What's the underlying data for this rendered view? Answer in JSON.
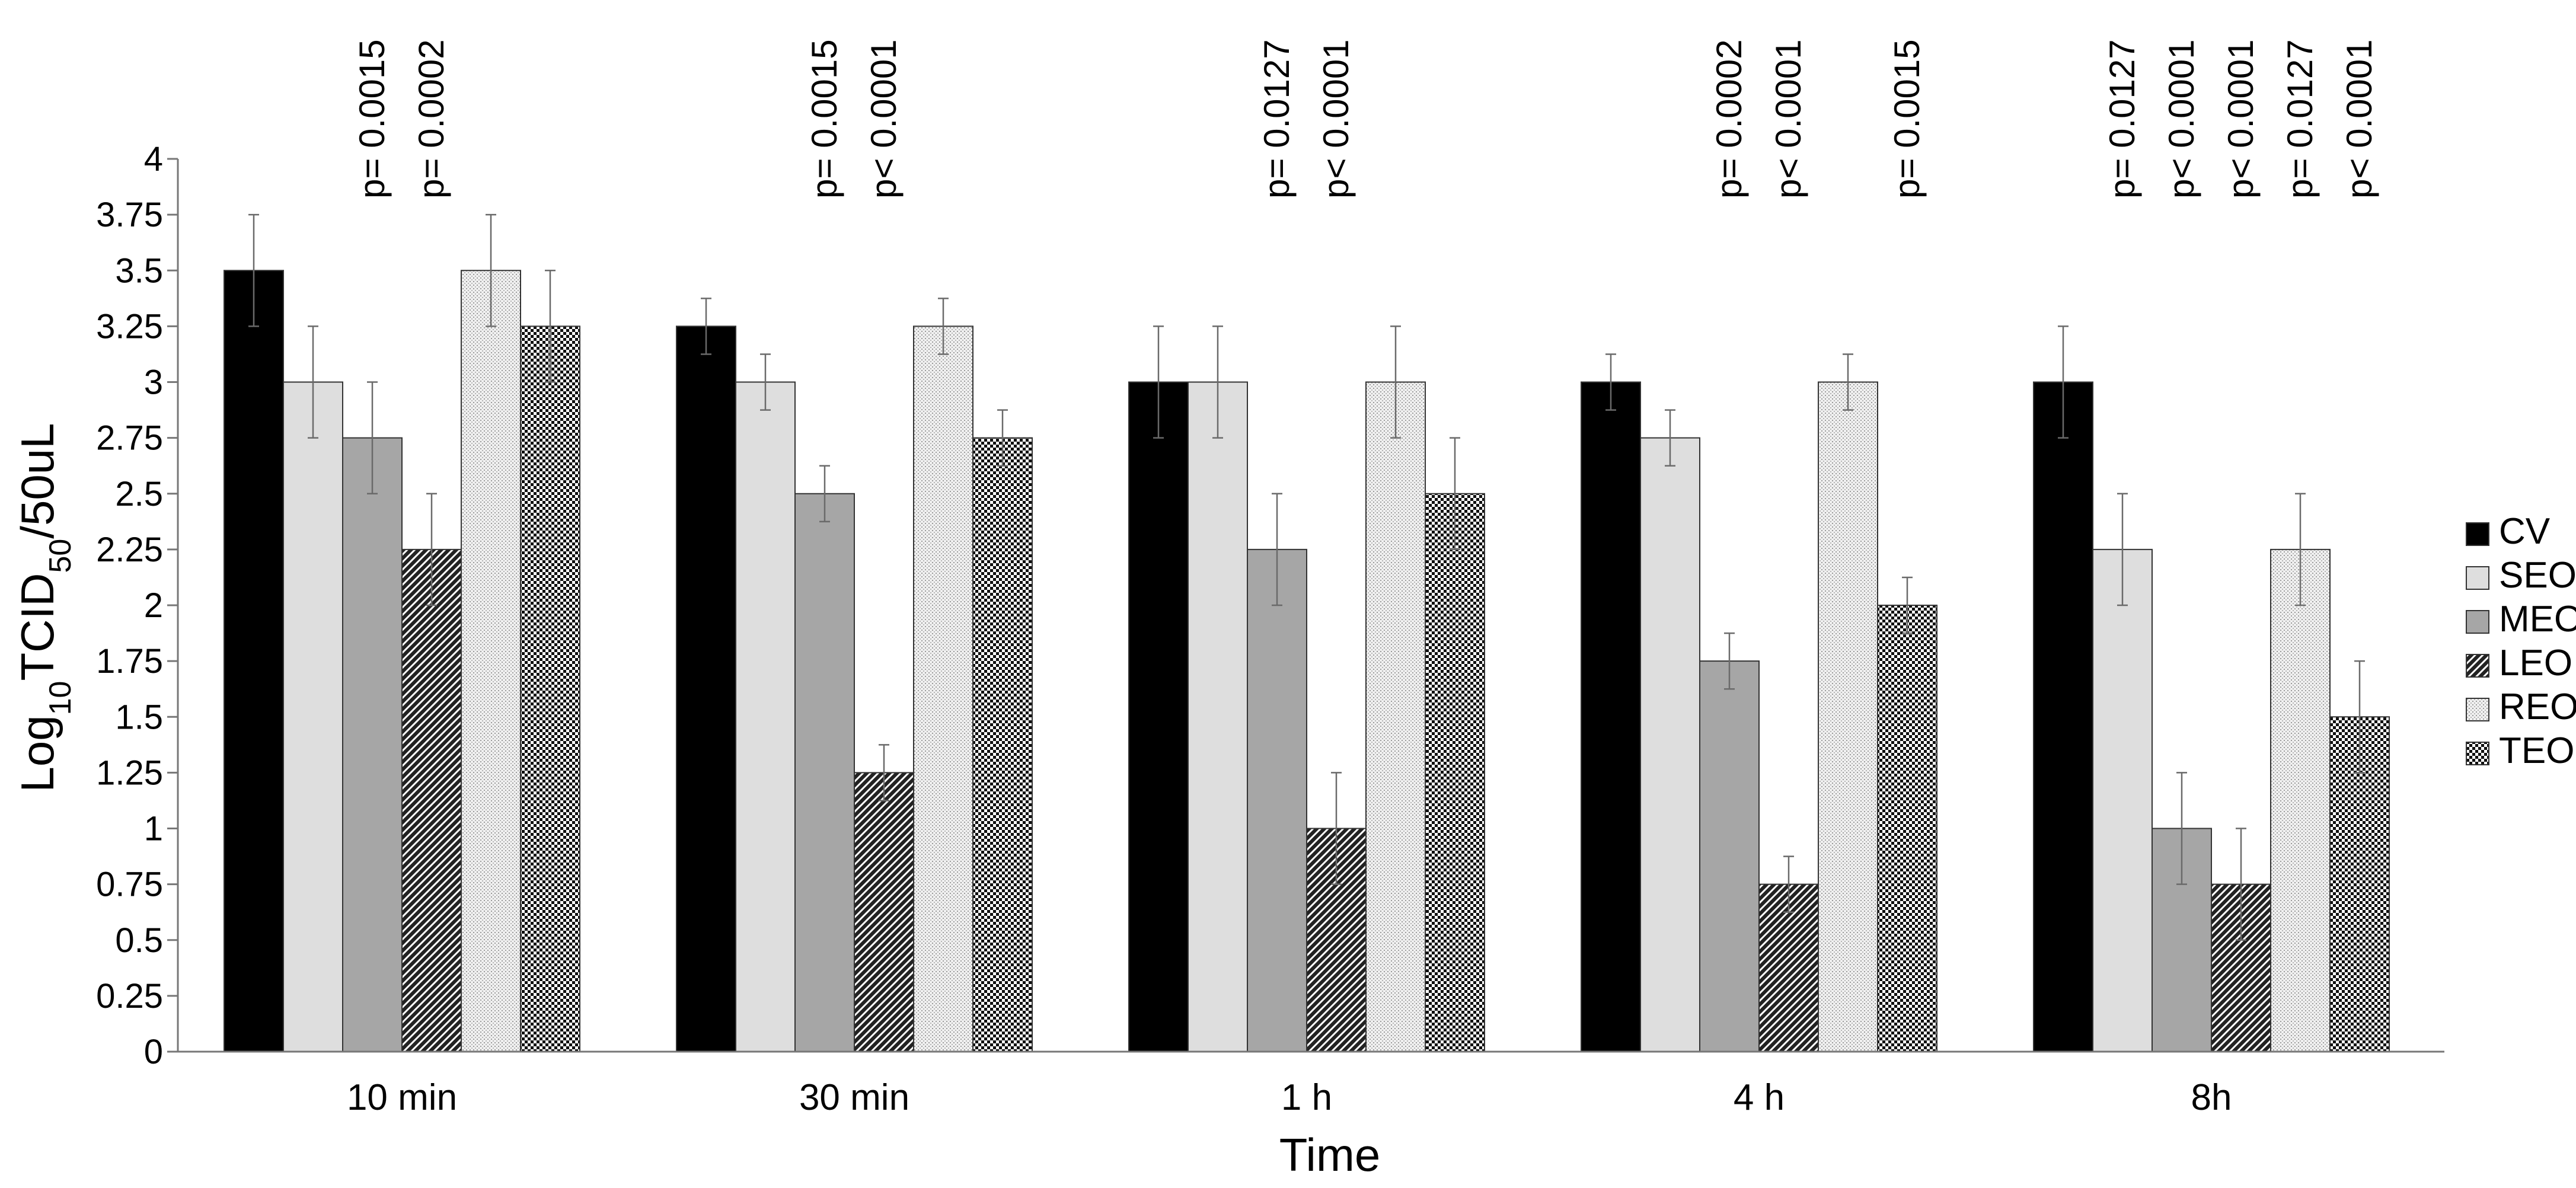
{
  "chart_data": {
    "type": "bar",
    "title": "",
    "xlabel": "Time",
    "ylabel": {
      "prefix": "Log",
      "sub1": "10",
      "mid": "TCID",
      "sub2": "50",
      "suffix": "/50uL"
    },
    "ylim": [
      0,
      4
    ],
    "yticks": [
      {
        "value": 0,
        "label": "0"
      },
      {
        "value": 0.25,
        "label": "0.25"
      },
      {
        "value": 0.5,
        "label": "0.5"
      },
      {
        "value": 0.75,
        "label": "0.75"
      },
      {
        "value": 1,
        "label": "1"
      },
      {
        "value": 1.25,
        "label": "1.25"
      },
      {
        "value": 1.5,
        "label": "1.5"
      },
      {
        "value": 1.75,
        "label": "1.75"
      },
      {
        "value": 2,
        "label": "2"
      },
      {
        "value": 2.25,
        "label": "2.25"
      },
      {
        "value": 2.5,
        "label": "2.5"
      },
      {
        "value": 2.75,
        "label": "2.75"
      },
      {
        "value": 3,
        "label": "3"
      },
      {
        "value": 3.25,
        "label": "3.25"
      },
      {
        "value": 3.5,
        "label": "3.5"
      },
      {
        "value": 3.75,
        "label": "3.75"
      },
      {
        "value": 4,
        "label": "4"
      }
    ],
    "categories": [
      "10 min",
      "30 min",
      "1 h",
      "4 h",
      "8h"
    ],
    "legend_position": "right",
    "series": [
      {
        "name": "CV",
        "fill": "solid-black",
        "values": [
          3.5,
          3.25,
          3.0,
          3.0,
          3.0
        ],
        "errors": [
          0.25,
          0.125,
          0.25,
          0.125,
          0.25
        ]
      },
      {
        "name": "SEO",
        "fill": "light-gray",
        "values": [
          3.0,
          3.0,
          3.0,
          2.75,
          2.25
        ],
        "errors": [
          0.25,
          0.125,
          0.25,
          0.125,
          0.25
        ]
      },
      {
        "name": "MEO",
        "fill": "medium-gray",
        "values": [
          2.75,
          2.5,
          2.25,
          1.75,
          1.0
        ],
        "errors": [
          0.25,
          0.125,
          0.25,
          0.125,
          0.25
        ]
      },
      {
        "name": "LEO",
        "fill": "diagonal-dark",
        "values": [
          2.25,
          1.25,
          1.0,
          0.75,
          0.75
        ],
        "errors": [
          0.25,
          0.125,
          0.25,
          0.125,
          0.25
        ]
      },
      {
        "name": "REO",
        "fill": "dotted-light",
        "values": [
          3.5,
          3.25,
          3.0,
          3.0,
          2.25
        ],
        "errors": [
          0.25,
          0.125,
          0.25,
          0.125,
          0.25
        ]
      },
      {
        "name": "TEO",
        "fill": "checker-dark",
        "values": [
          3.25,
          2.75,
          2.5,
          2.0,
          1.5
        ],
        "errors": [
          0.25,
          0.125,
          0.25,
          0.125,
          0.25
        ]
      }
    ],
    "annotations": [
      {
        "category": 0,
        "series": 2,
        "text": "p= 0.0015"
      },
      {
        "category": 0,
        "series": 3,
        "text": "p= 0.0002"
      },
      {
        "category": 1,
        "series": 2,
        "text": "p= 0.0015"
      },
      {
        "category": 1,
        "series": 3,
        "text": "p< 0.0001"
      },
      {
        "category": 2,
        "series": 2,
        "text": "p= 0.0127"
      },
      {
        "category": 2,
        "series": 3,
        "text": "p< 0.0001"
      },
      {
        "category": 3,
        "series": 2,
        "text": "p= 0.0002"
      },
      {
        "category": 3,
        "series": 3,
        "text": "p< 0.0001"
      },
      {
        "category": 3,
        "series": 5,
        "text": "p= 0.0015"
      },
      {
        "category": 4,
        "series": 1,
        "text": "p= 0.0127"
      },
      {
        "category": 4,
        "series": 2,
        "text": "p< 0.0001"
      },
      {
        "category": 4,
        "series": 3,
        "text": "p< 0.0001"
      },
      {
        "category": 4,
        "series": 4,
        "text": "p= 0.0127"
      },
      {
        "category": 4,
        "series": 5,
        "text": "p< 0.0001"
      }
    ]
  }
}
